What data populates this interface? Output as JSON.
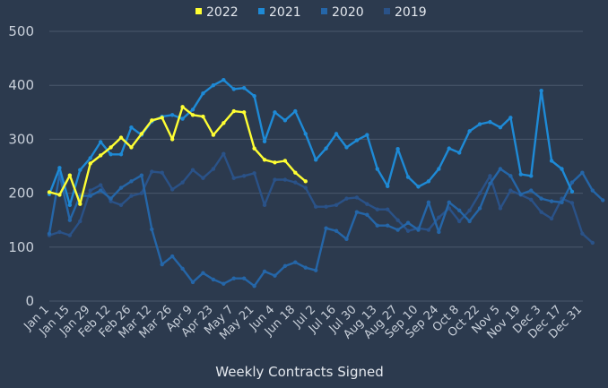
{
  "chart_data": {
    "type": "line",
    "title": "",
    "xlabel": "Weekly Contracts Signed",
    "ylabel": "",
    "ylim": [
      0,
      500
    ],
    "yticks": [
      0,
      100,
      200,
      300,
      400,
      500
    ],
    "grid": true,
    "legend_position": "top",
    "x_tick_labels": [
      "Jan 1",
      "Jan 15",
      "Jan 29",
      "Feb 12",
      "Feb 26",
      "Mar 12",
      "Mar 26",
      "Apr 9",
      "Apr 23",
      "May 7",
      "May 21",
      "Jun 4",
      "Jun 18",
      "Jul 2",
      "Jul 16",
      "Jul 30",
      "Aug 13",
      "Aug 27",
      "Sep 10",
      "Sep 24",
      "Oct 8",
      "Oct 22",
      "Nov 5",
      "Nov 19",
      "Dec 3",
      "Dec 17",
      "Dec 31"
    ],
    "x_tick_step_weeks": 2,
    "series": [
      {
        "name": "2022",
        "color": "#ffff33",
        "values": [
          202,
          197,
          233,
          180,
          255,
          270,
          285,
          303,
          285,
          310,
          335,
          340,
          300,
          360,
          345,
          342,
          308,
          330,
          352,
          350,
          283,
          262,
          257,
          260,
          238,
          222
        ]
      },
      {
        "name": "2021",
        "color": "#1e8ad6",
        "values": [
          198,
          247,
          178,
          243,
          265,
          295,
          272,
          272,
          322,
          308,
          333,
          342,
          345,
          338,
          355,
          385,
          400,
          410,
          393,
          395,
          380,
          296,
          350,
          335,
          352,
          310,
          262,
          283,
          310,
          285,
          298,
          308,
          245,
          213,
          282,
          230,
          212,
          222,
          245,
          283,
          275,
          315,
          328,
          332,
          322,
          340,
          235,
          232,
          390,
          260,
          245,
          203
        ]
      },
      {
        "name": "2020",
        "color": "#2566a8",
        "values": [
          125,
          235,
          150,
          195,
          195,
          205,
          190,
          210,
          222,
          233,
          133,
          68,
          83,
          60,
          35,
          52,
          40,
          32,
          42,
          42,
          28,
          55,
          47,
          65,
          72,
          62,
          57,
          135,
          130,
          115,
          165,
          160,
          140,
          140,
          132,
          145,
          132,
          183,
          128,
          183,
          168,
          148,
          172,
          218,
          245,
          232,
          198,
          205,
          190,
          185,
          183,
          220,
          238,
          205,
          187
        ]
      },
      {
        "name": "2019",
        "color": "#2a5288",
        "values": [
          122,
          128,
          122,
          148,
          205,
          215,
          185,
          178,
          195,
          200,
          240,
          238,
          207,
          220,
          243,
          228,
          245,
          273,
          228,
          232,
          237,
          178,
          225,
          225,
          220,
          210,
          175,
          175,
          178,
          190,
          192,
          180,
          170,
          170,
          150,
          130,
          135,
          132,
          155,
          172,
          148,
          168,
          200,
          232,
          172,
          205,
          197,
          188,
          165,
          153,
          190,
          182,
          125,
          108
        ]
      }
    ]
  }
}
